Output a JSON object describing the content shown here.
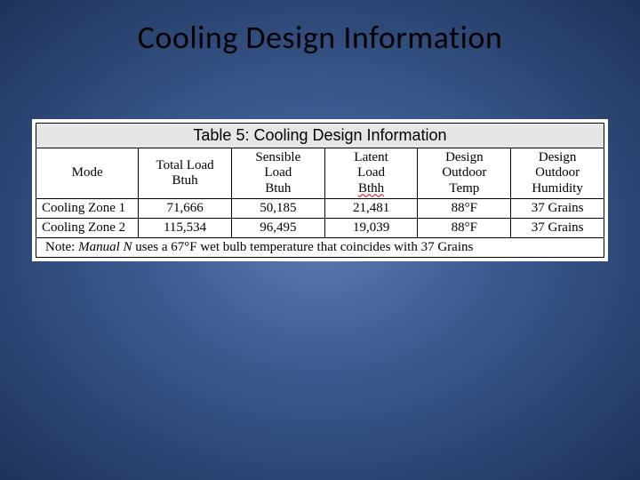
{
  "slide": {
    "title": "Cooling Design Information"
  },
  "table": {
    "caption": "Table 5:  Cooling Design Information",
    "columns": [
      {
        "label_line1": "Mode",
        "label_line2": ""
      },
      {
        "label_line1": "Total Load",
        "label_line2": "Btuh"
      },
      {
        "label_line1": "Sensible",
        "label_line2": "Load",
        "label_line3": "Btuh"
      },
      {
        "label_line1": "Latent",
        "label_line2": "Load",
        "label_line3": "Bthh",
        "squiggle": true
      },
      {
        "label_line1": "Design",
        "label_line2": "Outdoor",
        "label_line3": "Temp"
      },
      {
        "label_line1": "Design",
        "label_line2": "Outdoor",
        "label_line3": "Humidity"
      }
    ],
    "rows": [
      {
        "mode": "Cooling Zone 1",
        "total_load": "71,666",
        "sensible_load": "50,185",
        "latent_load": "21,481",
        "design_temp": "88°F",
        "design_humidity": "37 Grains"
      },
      {
        "mode": "Cooling Zone 2",
        "total_load": "115,534",
        "sensible_load": "96,495",
        "latent_load": "19,039",
        "design_temp": "88°F",
        "design_humidity": "37 Grains"
      }
    ],
    "note_prefix": "Note: ",
    "note_italic": "Manual N",
    "note_suffix": " uses a 67°F wet bulb temperature that coincides with 37 Grains",
    "colors": {
      "caption_bg": "#e6e6e6",
      "border": "#000000",
      "page_bg": "#ffffff"
    }
  }
}
